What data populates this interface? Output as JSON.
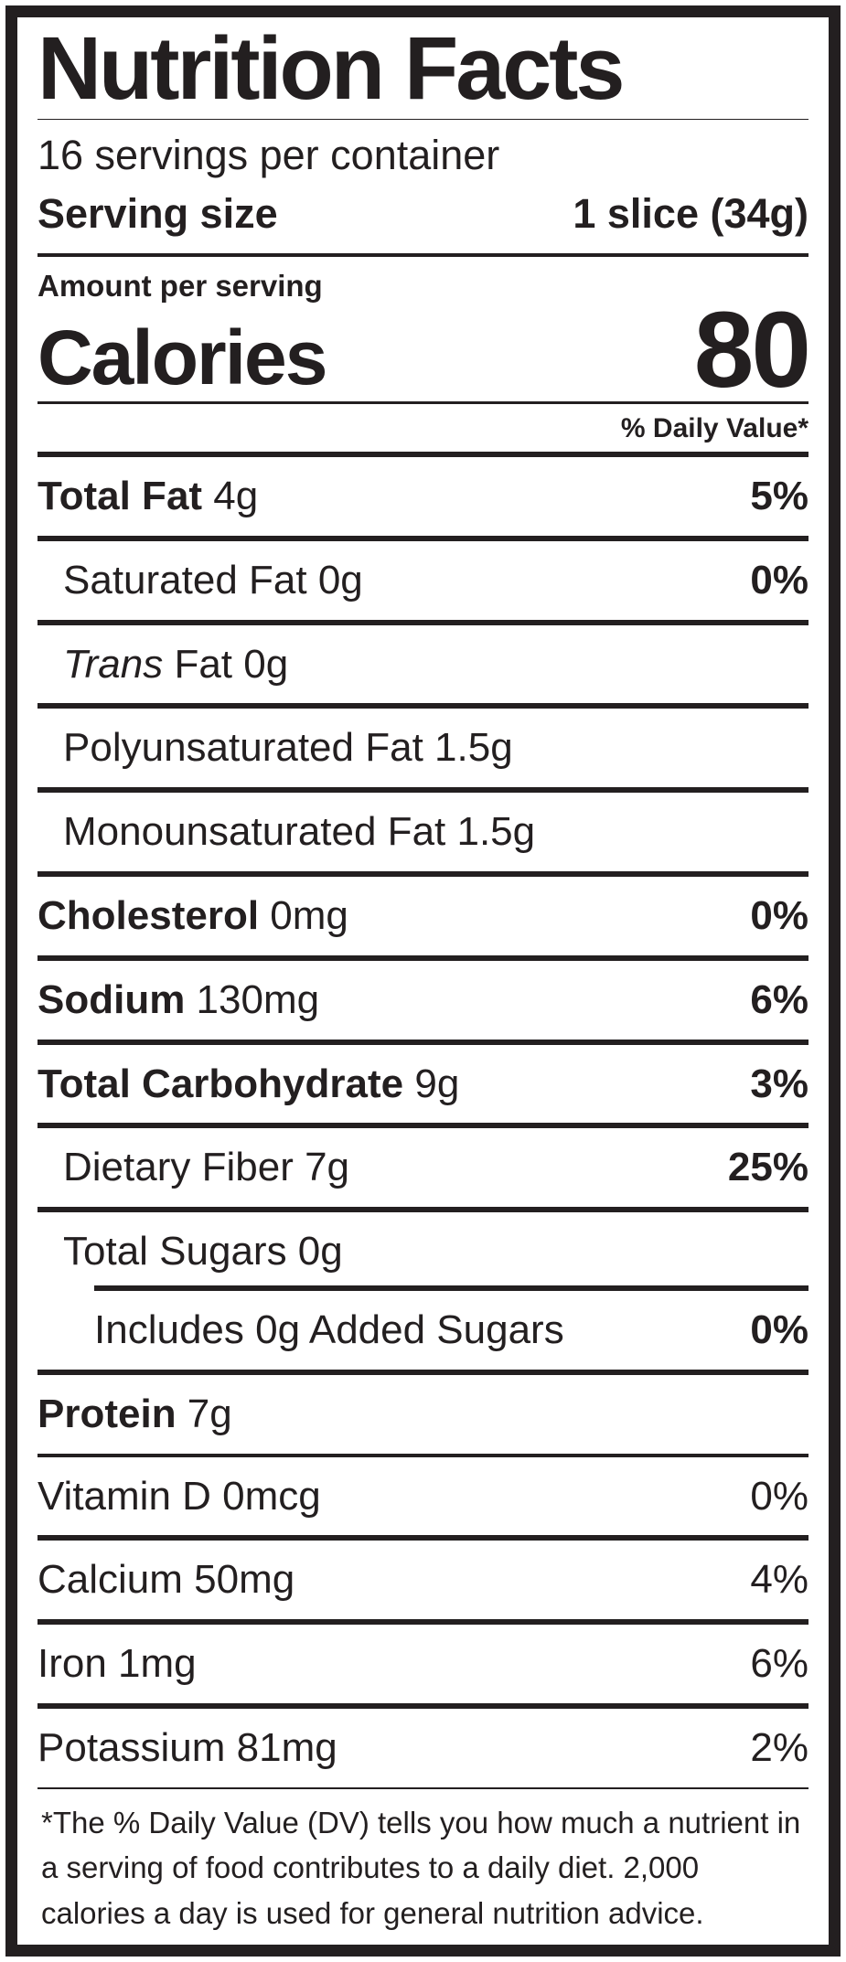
{
  "colors": {
    "ink": "#231f20",
    "background": "#ffffff"
  },
  "label": {
    "title": "Nutrition Facts",
    "servings_per_container": "16 servings per container",
    "serving_size_label": "Serving size",
    "serving_size_value": "1 slice (34g)",
    "amount_per_serving": "Amount per serving",
    "calories_label": "Calories",
    "calories_value": "80",
    "daily_value_header": "% Daily Value*",
    "nutrients": [
      {
        "name": "Total Fat",
        "amount": "4g",
        "dv": "5%",
        "major": true,
        "indent": 0
      },
      {
        "name": "Saturated Fat",
        "amount": "0g",
        "dv": "0%",
        "major": false,
        "indent": 1
      },
      {
        "name_italic": "Trans",
        "name": "Fat",
        "amount": "0g",
        "dv": "",
        "major": false,
        "indent": 1
      },
      {
        "name": "Polyunsaturated Fat",
        "amount": "1.5g",
        "dv": "",
        "major": false,
        "indent": 1
      },
      {
        "name": "Monounsaturated Fat",
        "amount": "1.5g",
        "dv": "",
        "major": false,
        "indent": 1
      },
      {
        "name": "Cholesterol",
        "amount": "0mg",
        "dv": "0%",
        "major": true,
        "indent": 0
      },
      {
        "name": "Sodium",
        "amount": "130mg",
        "dv": "6%",
        "major": true,
        "indent": 0
      },
      {
        "name": "Total Carbohydrate",
        "amount": "9g",
        "dv": "3%",
        "major": true,
        "indent": 0
      },
      {
        "name": "Dietary Fiber",
        "amount": "7g",
        "dv": "25%",
        "major": false,
        "indent": 1
      },
      {
        "name": "Total Sugars",
        "amount": "0g",
        "dv": "",
        "major": false,
        "indent": 1,
        "rule_below": false
      },
      {
        "name": "Includes 0g Added Sugars",
        "amount": "",
        "dv": "0%",
        "major": false,
        "indent": 2,
        "partial_rule_above": true
      },
      {
        "name": "Protein",
        "amount": "7g",
        "dv": "",
        "major": true,
        "indent": 0,
        "rule_below": false
      }
    ],
    "minerals": [
      {
        "name": "Vitamin D",
        "amount": "0mcg",
        "dv": "0%"
      },
      {
        "name": "Calcium",
        "amount": "50mg",
        "dv": "4%"
      },
      {
        "name": "Iron",
        "amount": "1mg",
        "dv": "6%"
      },
      {
        "name": "Potassium",
        "amount": "81mg",
        "dv": "2%"
      }
    ],
    "footnote": "*The % Daily Value (DV) tells you how much a nutrient in a serving of food contributes to a daily diet. 2,000 calories a day is used for general nutrition advice."
  }
}
